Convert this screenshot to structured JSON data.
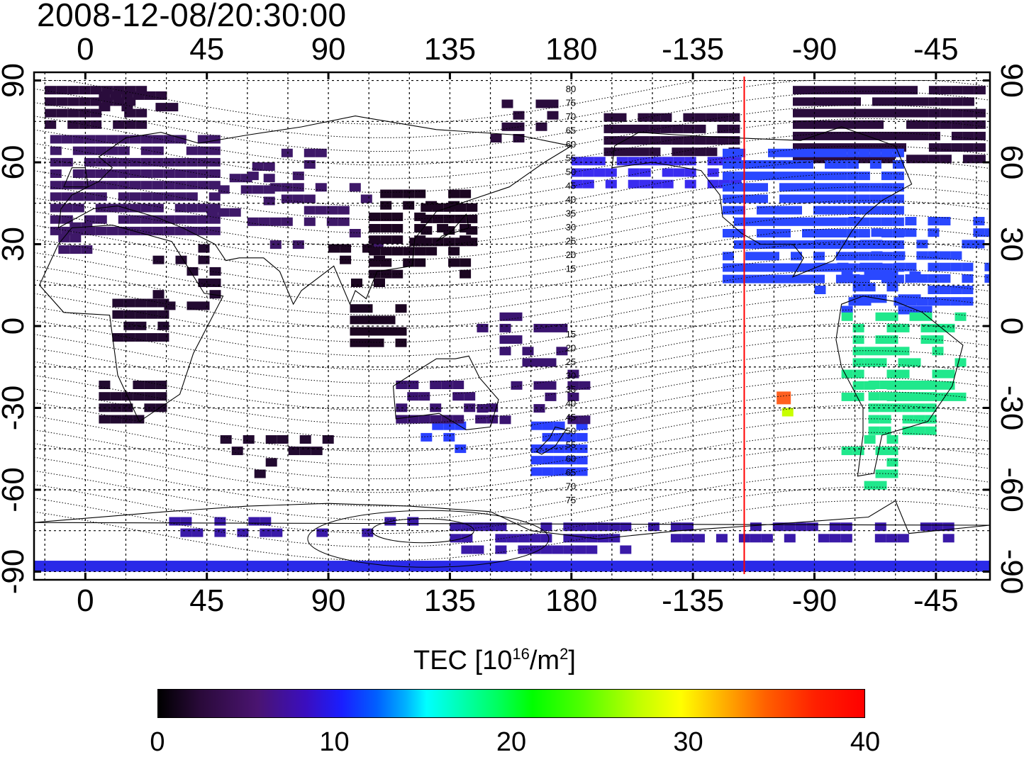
{
  "timestamp": "2008-12-08/20:30:00",
  "map": {
    "x_ticks": [
      "0",
      "45",
      "90",
      "135",
      "180",
      "-135",
      "-90",
      "-45"
    ],
    "y_ticks": [
      "90",
      "60",
      "30",
      "0",
      "-30",
      "-60",
      "-90"
    ],
    "x_tick_lon": [
      0,
      45,
      90,
      135,
      180,
      225,
      270,
      315
    ],
    "y_tick_lat": [
      90,
      60,
      30,
      0,
      -30,
      -60,
      -90
    ],
    "lon_range": [
      -19,
      335
    ],
    "lat_range": [
      -93,
      93
    ],
    "marker_longitude": 244,
    "marker_color": "#ff0000",
    "magnetic_lat_labels_upper": [
      "80",
      "75",
      "70",
      "65",
      "60",
      "55",
      "50",
      "45",
      "40",
      "35",
      "30",
      "25",
      "20",
      "15"
    ],
    "magnetic_lat_labels_lower": [
      "15",
      "20",
      "25",
      "30",
      "35",
      "40",
      "45",
      "50",
      "55",
      "60",
      "65",
      "70",
      "75"
    ]
  },
  "colorbar": {
    "title_prefix": "TEC  [10",
    "title_exp1": "16",
    "title_mid": "/m",
    "title_exp2": "2",
    "title_suffix": "]",
    "ticks": [
      "0",
      "10",
      "20",
      "30",
      "40"
    ],
    "range": [
      0,
      40
    ],
    "colormap": [
      "#000000",
      "#4a1470",
      "#1a1eff",
      "#00ffff",
      "#00ff00",
      "#ffff00",
      "#ff0000"
    ]
  },
  "tec_patches": [
    {
      "region": "north-polar-cap",
      "color": "#2a0c3c",
      "tec": 2
    },
    {
      "region": "europe",
      "color": "#3e1868",
      "tec": 4
    },
    {
      "region": "east-asia",
      "color": "#1c0622",
      "tec": 1
    },
    {
      "region": "africa",
      "color": "#220a30",
      "tec": 2
    },
    {
      "region": "north-pacific-alaska",
      "color": "#3a2cf0",
      "tec": 10
    },
    {
      "region": "north-america",
      "color": "#2a48ff",
      "tec": 11
    },
    {
      "region": "south-america",
      "color": "#20e88c",
      "tec": 21
    },
    {
      "region": "antarctica",
      "color": "#3a1aa8",
      "tec": 8
    },
    {
      "region": "new-zealand",
      "color": "#2a40ff",
      "tec": 11
    },
    {
      "region": "australia",
      "color": "#3a1470",
      "tec": 4
    }
  ]
}
